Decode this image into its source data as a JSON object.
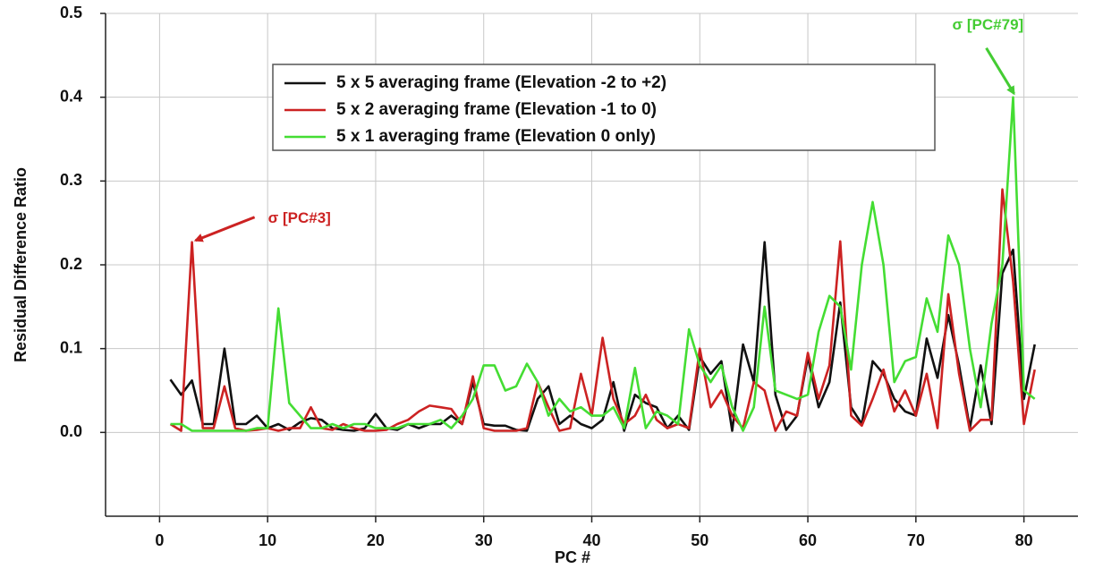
{
  "chart_data": {
    "type": "line",
    "xlabel": "PC #",
    "ylabel": "Residual Difference Ratio",
    "xlim": [
      -5,
      85
    ],
    "ylim": [
      -0.1,
      0.5
    ],
    "xticks": [
      0,
      10,
      20,
      30,
      40,
      50,
      60,
      70,
      80
    ],
    "yticks": [
      {
        "value": 0,
        "label": "0.0"
      },
      0.1,
      0.2,
      0.3,
      0.4,
      0.5
    ],
    "grid": true,
    "legend": "top",
    "x": [
      1,
      2,
      3,
      4,
      5,
      6,
      7,
      8,
      9,
      10,
      11,
      12,
      13,
      14,
      15,
      16,
      17,
      18,
      19,
      20,
      21,
      22,
      23,
      24,
      25,
      26,
      27,
      28,
      29,
      30,
      31,
      32,
      33,
      34,
      35,
      36,
      37,
      38,
      39,
      40,
      41,
      42,
      43,
      44,
      45,
      46,
      47,
      48,
      49,
      50,
      51,
      52,
      53,
      54,
      55,
      56,
      57,
      58,
      59,
      60,
      61,
      62,
      63,
      64,
      65,
      66,
      67,
      68,
      69,
      70,
      71,
      72,
      73,
      74,
      75,
      76,
      77,
      78,
      79,
      80,
      81
    ],
    "series": [
      {
        "name": "5 x 5 averaging frame (Elevation -2 to +2)",
        "color": "#111111",
        "values": [
          0.063,
          0.045,
          0.062,
          0.01,
          0.01,
          0.1,
          0.01,
          0.01,
          0.02,
          0.005,
          0.01,
          0.003,
          0.012,
          0.017,
          0.015,
          0.005,
          0.003,
          0.002,
          0.005,
          0.022,
          0.005,
          0.003,
          0.01,
          0.005,
          0.01,
          0.01,
          0.02,
          0.01,
          0.06,
          0.01,
          0.008,
          0.008,
          0.003,
          0.002,
          0.04,
          0.055,
          0.01,
          0.02,
          0.01,
          0.005,
          0.015,
          0.06,
          0.002,
          0.045,
          0.035,
          0.03,
          0.005,
          0.02,
          0.003,
          0.09,
          0.07,
          0.085,
          0.002,
          0.105,
          0.06,
          0.227,
          0.045,
          0.003,
          0.02,
          0.09,
          0.03,
          0.06,
          0.155,
          0.03,
          0.01,
          0.085,
          0.07,
          0.04,
          0.025,
          0.02,
          0.112,
          0.065,
          0.14,
          0.08,
          0.005,
          0.08,
          0.01,
          0.19,
          0.218,
          0.04,
          0.105
        ]
      },
      {
        "name": "5 x 2 averaging frame (Elevation -1 to 0)",
        "color": "#cc2222",
        "values": [
          0.01,
          0.002,
          0.227,
          0.005,
          0.005,
          0.055,
          0.005,
          0.002,
          0.003,
          0.005,
          0.002,
          0.005,
          0.005,
          0.03,
          0.005,
          0.003,
          0.01,
          0.005,
          0.002,
          0.002,
          0.003,
          0.01,
          0.015,
          0.025,
          0.032,
          0.03,
          0.028,
          0.01,
          0.067,
          0.005,
          0.002,
          0.002,
          0.002,
          0.005,
          0.06,
          0.03,
          0.002,
          0.005,
          0.07,
          0.02,
          0.113,
          0.04,
          0.01,
          0.02,
          0.045,
          0.015,
          0.005,
          0.01,
          0.005,
          0.1,
          0.03,
          0.05,
          0.02,
          0.005,
          0.06,
          0.05,
          0.002,
          0.025,
          0.02,
          0.095,
          0.04,
          0.08,
          0.228,
          0.02,
          0.008,
          0.04,
          0.075,
          0.025,
          0.05,
          0.02,
          0.07,
          0.005,
          0.165,
          0.07,
          0.002,
          0.015,
          0.015,
          0.29,
          0.18,
          0.01,
          0.075
        ]
      },
      {
        "name": "5 x 1 averaging frame (Elevation 0 only)",
        "color": "#44dd33",
        "values": [
          0.01,
          0.01,
          0.002,
          0.002,
          0.002,
          0.002,
          0.002,
          0.002,
          0.005,
          0.005,
          0.148,
          0.035,
          0.02,
          0.005,
          0.005,
          0.01,
          0.005,
          0.01,
          0.01,
          0.005,
          0.005,
          0.005,
          0.01,
          0.01,
          0.01,
          0.015,
          0.005,
          0.02,
          0.04,
          0.08,
          0.08,
          0.05,
          0.055,
          0.082,
          0.06,
          0.02,
          0.04,
          0.025,
          0.03,
          0.02,
          0.02,
          0.03,
          0.005,
          0.077,
          0.005,
          0.025,
          0.02,
          0.01,
          0.123,
          0.08,
          0.06,
          0.08,
          0.03,
          0.002,
          0.03,
          0.15,
          0.05,
          0.045,
          0.04,
          0.045,
          0.12,
          0.163,
          0.15,
          0.075,
          0.2,
          0.275,
          0.2,
          0.06,
          0.085,
          0.09,
          0.16,
          0.12,
          0.235,
          0.2,
          0.1,
          0.03,
          0.13,
          0.2,
          0.4,
          0.05,
          0.04
        ]
      }
    ],
    "annotations": [
      {
        "text": "σ [PC#3]",
        "color": "#cc2222",
        "x": 3,
        "y": 0.227
      },
      {
        "text": "σ [PC#79]",
        "color": "#44cc33",
        "x": 79,
        "y": 0.4
      }
    ]
  }
}
